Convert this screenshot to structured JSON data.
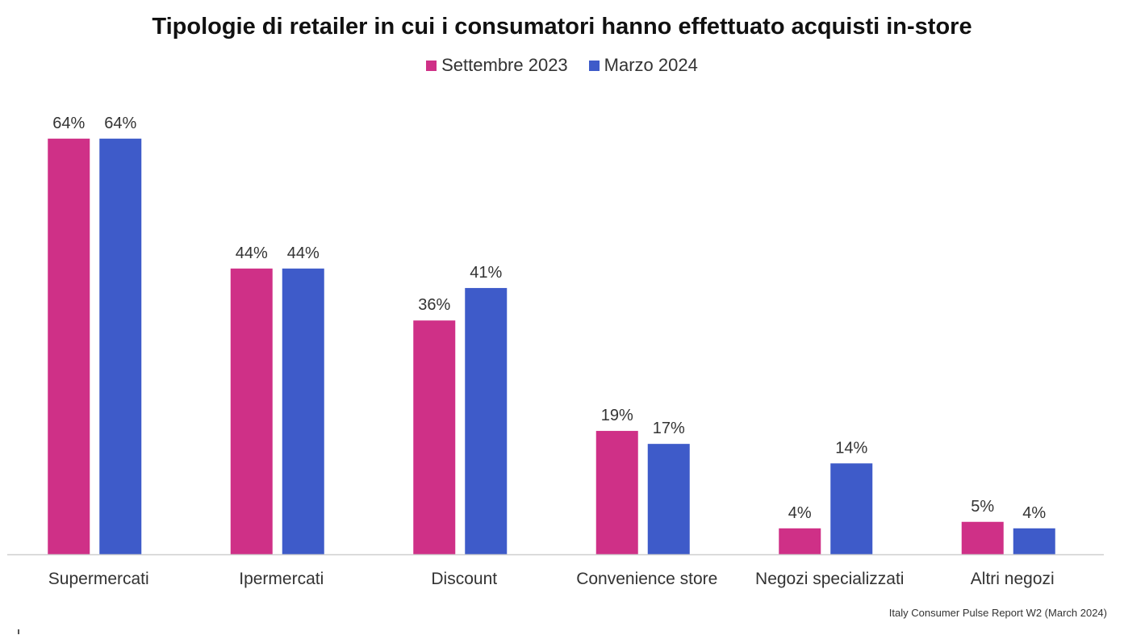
{
  "chart_data": {
    "type": "bar",
    "title": "Tipologie di retailer in cui i consumatori hanno effettuato acquisti in-store",
    "categories": [
      "Supermercati",
      "Ipermercati",
      "Discount",
      "Convenience store",
      "Negozi specializzati",
      "Altri negozi"
    ],
    "series": [
      {
        "name": "Settembre 2023",
        "color": "#CF3087",
        "values": [
          64,
          44,
          36,
          19,
          4,
          5
        ],
        "labels": [
          "64%",
          "44%",
          "36%",
          "19%",
          "4%",
          "5%"
        ]
      },
      {
        "name": "Marzo 2024",
        "color": "#3E5BC9",
        "values": [
          64,
          44,
          41,
          17,
          14,
          4
        ],
        "labels": [
          "64%",
          "44%",
          "41%",
          "17%",
          "14%",
          "4%"
        ]
      }
    ],
    "ylim": [
      0,
      64
    ],
    "grid": false,
    "legend_position": "top-center",
    "xlabel": "",
    "ylabel": "",
    "source": "Italy Consumer Pulse Report W2 (March 2024)"
  }
}
